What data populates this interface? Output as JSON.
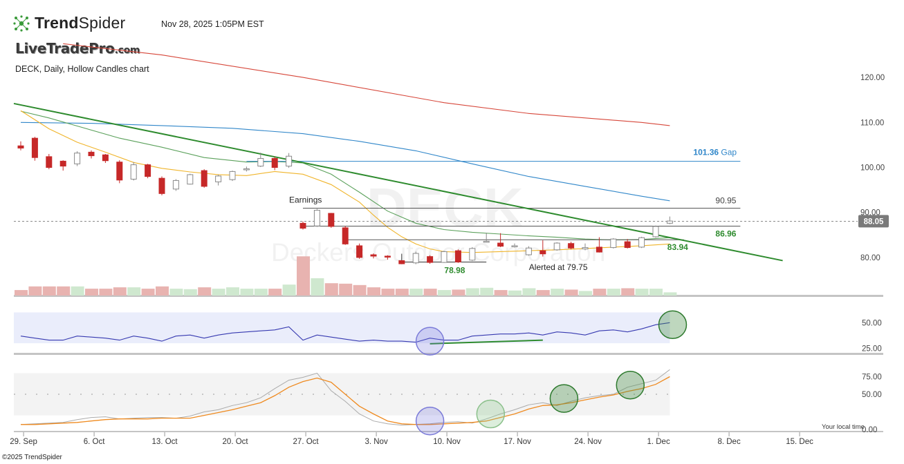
{
  "header": {
    "logo_text_bold": "Trend",
    "logo_text_light": "Spider",
    "logo_icon": "spider-dots-icon",
    "timestamp": "Nov 28, 2025 1:05PM EST",
    "brand": "LiveTradePro",
    "brand_suffix": ".com",
    "subtitle": "DECK, Daily, Hollow Candles chart"
  },
  "watermark": {
    "ticker": "DECK",
    "name": "Deckers Outdoor Corporation"
  },
  "footer": {
    "copyright": "©2025 TrendSpider",
    "local_time": "Your local time"
  },
  "colors": {
    "up": "#888888",
    "down": "#c62828",
    "trend": "#2e8b2e",
    "ma_red": "#d64538",
    "ma_blue": "#2f86c9",
    "ma_green": "#5aa05a",
    "ma_yellow": "#f0b429",
    "rsi": "#3538b0",
    "stoch_k": "#aaaaaa",
    "stoch_d": "#ef8a1f"
  },
  "chart_data": [
    {
      "type": "candlestick",
      "title": "DECK, Daily, Hollow Candles chart",
      "x_tick_labels": [
        "29. Sep",
        "6. Oct",
        "13. Oct",
        "20. Oct",
        "27. Oct",
        "3. Nov",
        "10. Nov",
        "17. Nov",
        "24. Nov",
        "1. Dec",
        "8. Dec",
        "15. Dec"
      ],
      "y_tick_labels": [
        "80.00",
        "90.00",
        "100.00",
        "110.00",
        "120.00"
      ],
      "ylim": [
        74,
        128
      ],
      "last_price": "88.05",
      "candles": [
        {
          "o": 104.8,
          "h": 105.8,
          "l": 103.8,
          "c": 104.3,
          "v": 1.2
        },
        {
          "o": 106.5,
          "h": 106.8,
          "l": 101.5,
          "c": 102.2,
          "v": 2.0
        },
        {
          "o": 102.4,
          "h": 103.0,
          "l": 99.6,
          "c": 100.0,
          "v": 2.0
        },
        {
          "o": 101.4,
          "h": 101.6,
          "l": 99.3,
          "c": 100.3,
          "v": 2.0
        },
        {
          "o": 100.8,
          "h": 103.6,
          "l": 100.3,
          "c": 103.2,
          "v": 2.0
        },
        {
          "o": 103.4,
          "h": 103.8,
          "l": 102.0,
          "c": 102.6,
          "v": 1.5
        },
        {
          "o": 102.8,
          "h": 103.0,
          "l": 101.0,
          "c": 101.5,
          "v": 1.5
        },
        {
          "o": 101.2,
          "h": 101.6,
          "l": 96.5,
          "c": 97.2,
          "v": 1.8
        },
        {
          "o": 97.4,
          "h": 101.2,
          "l": 97.1,
          "c": 100.6,
          "v": 1.8
        },
        {
          "o": 100.6,
          "h": 100.8,
          "l": 97.6,
          "c": 98.0,
          "v": 1.5
        },
        {
          "o": 97.6,
          "h": 98.0,
          "l": 93.8,
          "c": 94.2,
          "v": 2.0
        },
        {
          "o": 95.2,
          "h": 97.4,
          "l": 94.8,
          "c": 97.1,
          "v": 1.5
        },
        {
          "o": 96.3,
          "h": 98.6,
          "l": 96.2,
          "c": 98.4,
          "v": 1.4
        },
        {
          "o": 99.3,
          "h": 99.6,
          "l": 95.5,
          "c": 95.8,
          "v": 1.8
        },
        {
          "o": 96.8,
          "h": 98.4,
          "l": 96.0,
          "c": 98.1,
          "v": 1.5
        },
        {
          "o": 97.3,
          "h": 99.3,
          "l": 97.0,
          "c": 99.1,
          "v": 1.8
        },
        {
          "o": 99.6,
          "h": 100.2,
          "l": 99.1,
          "c": 99.7,
          "v": 1.5
        },
        {
          "o": 100.3,
          "h": 103.3,
          "l": 100.1,
          "c": 102.0,
          "v": 1.5
        },
        {
          "o": 102.0,
          "h": 102.4,
          "l": 99.4,
          "c": 100.0,
          "v": 1.5
        },
        {
          "o": 100.3,
          "h": 103.2,
          "l": 99.9,
          "c": 102.5,
          "v": 2.4
        },
        {
          "o": 87.6,
          "h": 88.0,
          "l": 86.2,
          "c": 86.5,
          "v": 8.6
        },
        {
          "o": 87.0,
          "h": 90.8,
          "l": 86.8,
          "c": 90.5,
          "v": 3.8
        },
        {
          "o": 89.8,
          "h": 89.9,
          "l": 86.6,
          "c": 86.9,
          "v": 2.7
        },
        {
          "o": 86.6,
          "h": 87.0,
          "l": 82.8,
          "c": 83.0,
          "v": 2.6
        },
        {
          "o": 82.6,
          "h": 83.1,
          "l": 79.7,
          "c": 80.0,
          "v": 2.3
        },
        {
          "o": 80.6,
          "h": 80.9,
          "l": 79.8,
          "c": 80.3,
          "v": 1.8
        },
        {
          "o": 80.3,
          "h": 80.5,
          "l": 79.5,
          "c": 80.1,
          "v": 1.5
        },
        {
          "o": 79.3,
          "h": 79.4,
          "l": 78.5,
          "c": 78.6,
          "v": 1.5
        },
        {
          "o": 78.8,
          "h": 81.3,
          "l": 78.5,
          "c": 80.9,
          "v": 1.5
        },
        {
          "o": 80.2,
          "h": 80.5,
          "l": 78.6,
          "c": 78.9,
          "v": 1.5
        },
        {
          "o": 78.9,
          "h": 81.5,
          "l": 78.8,
          "c": 81.3,
          "v": 1.2
        },
        {
          "o": 81.5,
          "h": 81.8,
          "l": 78.8,
          "c": 79.0,
          "v": 1.3
        },
        {
          "o": 79.4,
          "h": 82.3,
          "l": 79.2,
          "c": 82.0,
          "v": 1.6
        },
        {
          "o": 83.6,
          "h": 85.5,
          "l": 83.3,
          "c": 83.6,
          "v": 1.7
        },
        {
          "o": 83.2,
          "h": 85.4,
          "l": 82.3,
          "c": 82.5,
          "v": 1.2
        },
        {
          "o": 82.6,
          "h": 83.1,
          "l": 82.2,
          "c": 82.6,
          "v": 1.1
        },
        {
          "o": 80.6,
          "h": 82.5,
          "l": 80.4,
          "c": 82.1,
          "v": 1.6
        },
        {
          "o": 81.5,
          "h": 83.8,
          "l": 80.2,
          "c": 80.8,
          "v": 1.2
        },
        {
          "o": 81.7,
          "h": 83.4,
          "l": 81.5,
          "c": 83.2,
          "v": 1.5
        },
        {
          "o": 83.1,
          "h": 83.5,
          "l": 81.8,
          "c": 82.1,
          "v": 1.3
        },
        {
          "o": 81.9,
          "h": 83.1,
          "l": 81.6,
          "c": 82.2,
          "v": 1.0
        },
        {
          "o": 82.3,
          "h": 84.5,
          "l": 81.1,
          "c": 81.2,
          "v": 1.5
        },
        {
          "o": 82.2,
          "h": 84.3,
          "l": 82.0,
          "c": 84.1,
          "v": 1.5
        },
        {
          "o": 83.5,
          "h": 84.1,
          "l": 82.0,
          "c": 82.2,
          "v": 1.6
        },
        {
          "o": 82.3,
          "h": 84.6,
          "l": 82.1,
          "c": 84.4,
          "v": 1.5
        },
        {
          "o": 84.6,
          "h": 87.1,
          "l": 84.4,
          "c": 86.9,
          "v": 1.5
        },
        {
          "o": 87.6,
          "h": 89.1,
          "l": 87.4,
          "c": 88.1,
          "v": 0.7
        }
      ],
      "overlays": [
        {
          "name": "MA red",
          "color": "#d64538",
          "x": [
            3,
            10,
            20,
            30,
            36,
            44,
            46
          ],
          "y": [
            127.5,
            125.0,
            120.0,
            114.4,
            112.0,
            110.0,
            109.3
          ]
        },
        {
          "name": "MA blue",
          "color": "#2f86c9",
          "x": [
            0,
            5,
            10,
            15,
            20,
            24,
            28,
            32,
            36,
            40,
            44,
            46
          ],
          "y": [
            110.0,
            109.8,
            109.3,
            108.7,
            107.5,
            105.8,
            103.7,
            100.8,
            98.0,
            95.8,
            93.6,
            92.6
          ]
        },
        {
          "name": "MA green",
          "color": "#5aa05a",
          "x": [
            0,
            2,
            4,
            7,
            10,
            13,
            16,
            18,
            20,
            22,
            24,
            26,
            28,
            30,
            32,
            34,
            36,
            38,
            40,
            42,
            44,
            46
          ],
          "y": [
            112.5,
            111.0,
            109.2,
            106.5,
            104.5,
            102.2,
            101.2,
            101.3,
            101.0,
            98.5,
            94.5,
            90.3,
            87.6,
            86.2,
            85.6,
            85.2,
            84.8,
            84.5,
            84.1,
            83.9,
            84.0,
            84.4
          ]
        },
        {
          "name": "MA yellow",
          "color": "#f0b429",
          "x": [
            0,
            1,
            2,
            4,
            6,
            8,
            10,
            12,
            14,
            16,
            18,
            20,
            22,
            24,
            25,
            26,
            27,
            28,
            29,
            30,
            32,
            34,
            36,
            38,
            40,
            42,
            44,
            46
          ],
          "y": [
            112.6,
            110.6,
            108.6,
            105.6,
            103.4,
            101.1,
            99.8,
            99.0,
            98.4,
            98.2,
            99.1,
            98.5,
            96.2,
            92.3,
            89.4,
            86.7,
            84.6,
            83.0,
            81.9,
            81.3,
            81.1,
            81.3,
            81.5,
            81.7,
            82.0,
            82.3,
            82.6,
            83.0
          ]
        }
      ],
      "trendline": {
        "color": "#2e8b2e",
        "x": [
          0,
          54
        ],
        "y": [
          114.2,
          79.3
        ]
      },
      "horizontal_levels": [
        {
          "value": 101.36,
          "label": "101.36",
          "suffix": "Gap",
          "color": "#2f86c9",
          "x_start": 16,
          "x_end": 51
        },
        {
          "value": 90.95,
          "label": "90.95",
          "color": "#555555",
          "x_start": 20,
          "x_end": 51
        },
        {
          "value": 86.96,
          "label": "86.96",
          "color": "#555555",
          "x_start": 20,
          "x_end": 51
        },
        {
          "value": 83.94,
          "label": "83.94",
          "color": "#555555",
          "x_start": 23,
          "x_end": 47
        }
      ],
      "annotations": [
        {
          "text": "Earnings",
          "x": 20,
          "y": 92.2
        },
        {
          "text": "78.98",
          "x": 31,
          "y": 76.5,
          "color": "#2e8b2e"
        },
        {
          "text": "Alerted at 79.75",
          "x": 37,
          "y": 77.2,
          "color": "#222222"
        }
      ],
      "support_bracket": {
        "x_start": 27,
        "x_end": 33,
        "value": 78.98
      }
    },
    {
      "type": "line",
      "name": "RSI",
      "y_tick_labels": [
        "50.00",
        "25.00"
      ],
      "ylim": [
        20,
        65
      ],
      "band": [
        30,
        60
      ],
      "values": [
        37,
        35,
        33,
        33,
        37,
        36,
        35,
        33,
        37,
        35,
        32,
        37,
        38,
        35,
        38,
        40,
        41,
        42,
        43,
        46,
        33,
        38,
        36,
        34,
        32,
        33,
        32,
        32,
        31,
        35,
        33,
        33,
        37,
        38,
        39,
        39,
        40,
        38,
        41,
        40,
        38,
        42,
        43,
        41,
        44,
        48,
        50
      ],
      "signal_line": {
        "x": [
          29,
          37
        ],
        "y": [
          29.5,
          33
        ]
      },
      "circles": [
        {
          "x": 29,
          "y": 32
        },
        {
          "x": 46.2,
          "y": 48
        }
      ]
    },
    {
      "type": "line",
      "name": "Stochastic",
      "y_tick_labels": [
        "75.00",
        "50.00",
        "0.00"
      ],
      "ylim": [
        -2,
        100
      ],
      "band": [
        20,
        80
      ],
      "k_values": [
        7,
        8,
        9,
        10,
        14,
        17,
        18,
        15,
        16,
        17,
        17,
        16,
        19,
        25,
        28,
        34,
        38,
        45,
        58,
        70,
        74,
        80,
        55,
        40,
        22,
        12,
        8,
        6,
        7,
        8,
        10,
        11,
        9,
        15,
        22,
        28,
        35,
        38,
        34,
        40,
        45,
        48,
        50,
        60,
        65,
        70,
        85
      ],
      "d_values": [
        7,
        7,
        8,
        9,
        10,
        12,
        14,
        15,
        15,
        15,
        16,
        16,
        16,
        20,
        24,
        28,
        33,
        38,
        48,
        60,
        68,
        73,
        67,
        50,
        33,
        22,
        12,
        8,
        7,
        7,
        8,
        9,
        10,
        12,
        17,
        22,
        29,
        34,
        35,
        38,
        42,
        46,
        49,
        54,
        58,
        64,
        75
      ],
      "circles": [
        {
          "x": 29,
          "y": 12
        },
        {
          "x": 33.3,
          "y": 22
        },
        {
          "x": 38.5,
          "y": 44
        },
        {
          "x": 43.2,
          "y": 63
        }
      ]
    }
  ]
}
